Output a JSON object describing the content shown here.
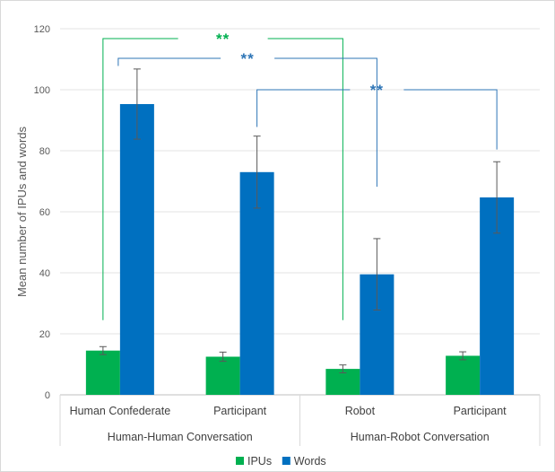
{
  "chart_data": {
    "type": "bar",
    "ylabel": "Mean number of IPUs and words",
    "ylim": [
      0,
      120
    ],
    "yticks": [
      0,
      20,
      40,
      60,
      80,
      100,
      120
    ],
    "grid": true,
    "legend_position": "bottom",
    "categories": [
      "Human Confederate",
      "Participant",
      "Robot",
      "Participant"
    ],
    "groups": [
      {
        "label": "Human-Human Conversation",
        "categories": [
          0,
          1
        ]
      },
      {
        "label": "Human-Robot Conversation",
        "categories": [
          2,
          3
        ]
      }
    ],
    "series": [
      {
        "name": "IPUs",
        "color": "#00b050",
        "values": [
          14.5,
          12.5,
          8.5,
          12.8
        ],
        "errors": [
          1.3,
          1.5,
          1.3,
          1.3
        ]
      },
      {
        "name": "Words",
        "color": "#0070c0",
        "values": [
          95.3,
          73,
          39.5,
          64.7
        ],
        "errors": [
          11.5,
          11.8,
          11.7,
          11.7
        ]
      }
    ],
    "significance": [
      {
        "text": "**",
        "series": "IPUs",
        "from_category": 0,
        "to_category": 2,
        "color": "#00b050"
      },
      {
        "text": "**",
        "series": "Words",
        "from_category": 0,
        "to_category": 2,
        "color": "#2e75b6"
      },
      {
        "text": "**",
        "series": "Words",
        "from_category": 1,
        "to_category": 3,
        "color": "#2e75b6"
      }
    ]
  }
}
